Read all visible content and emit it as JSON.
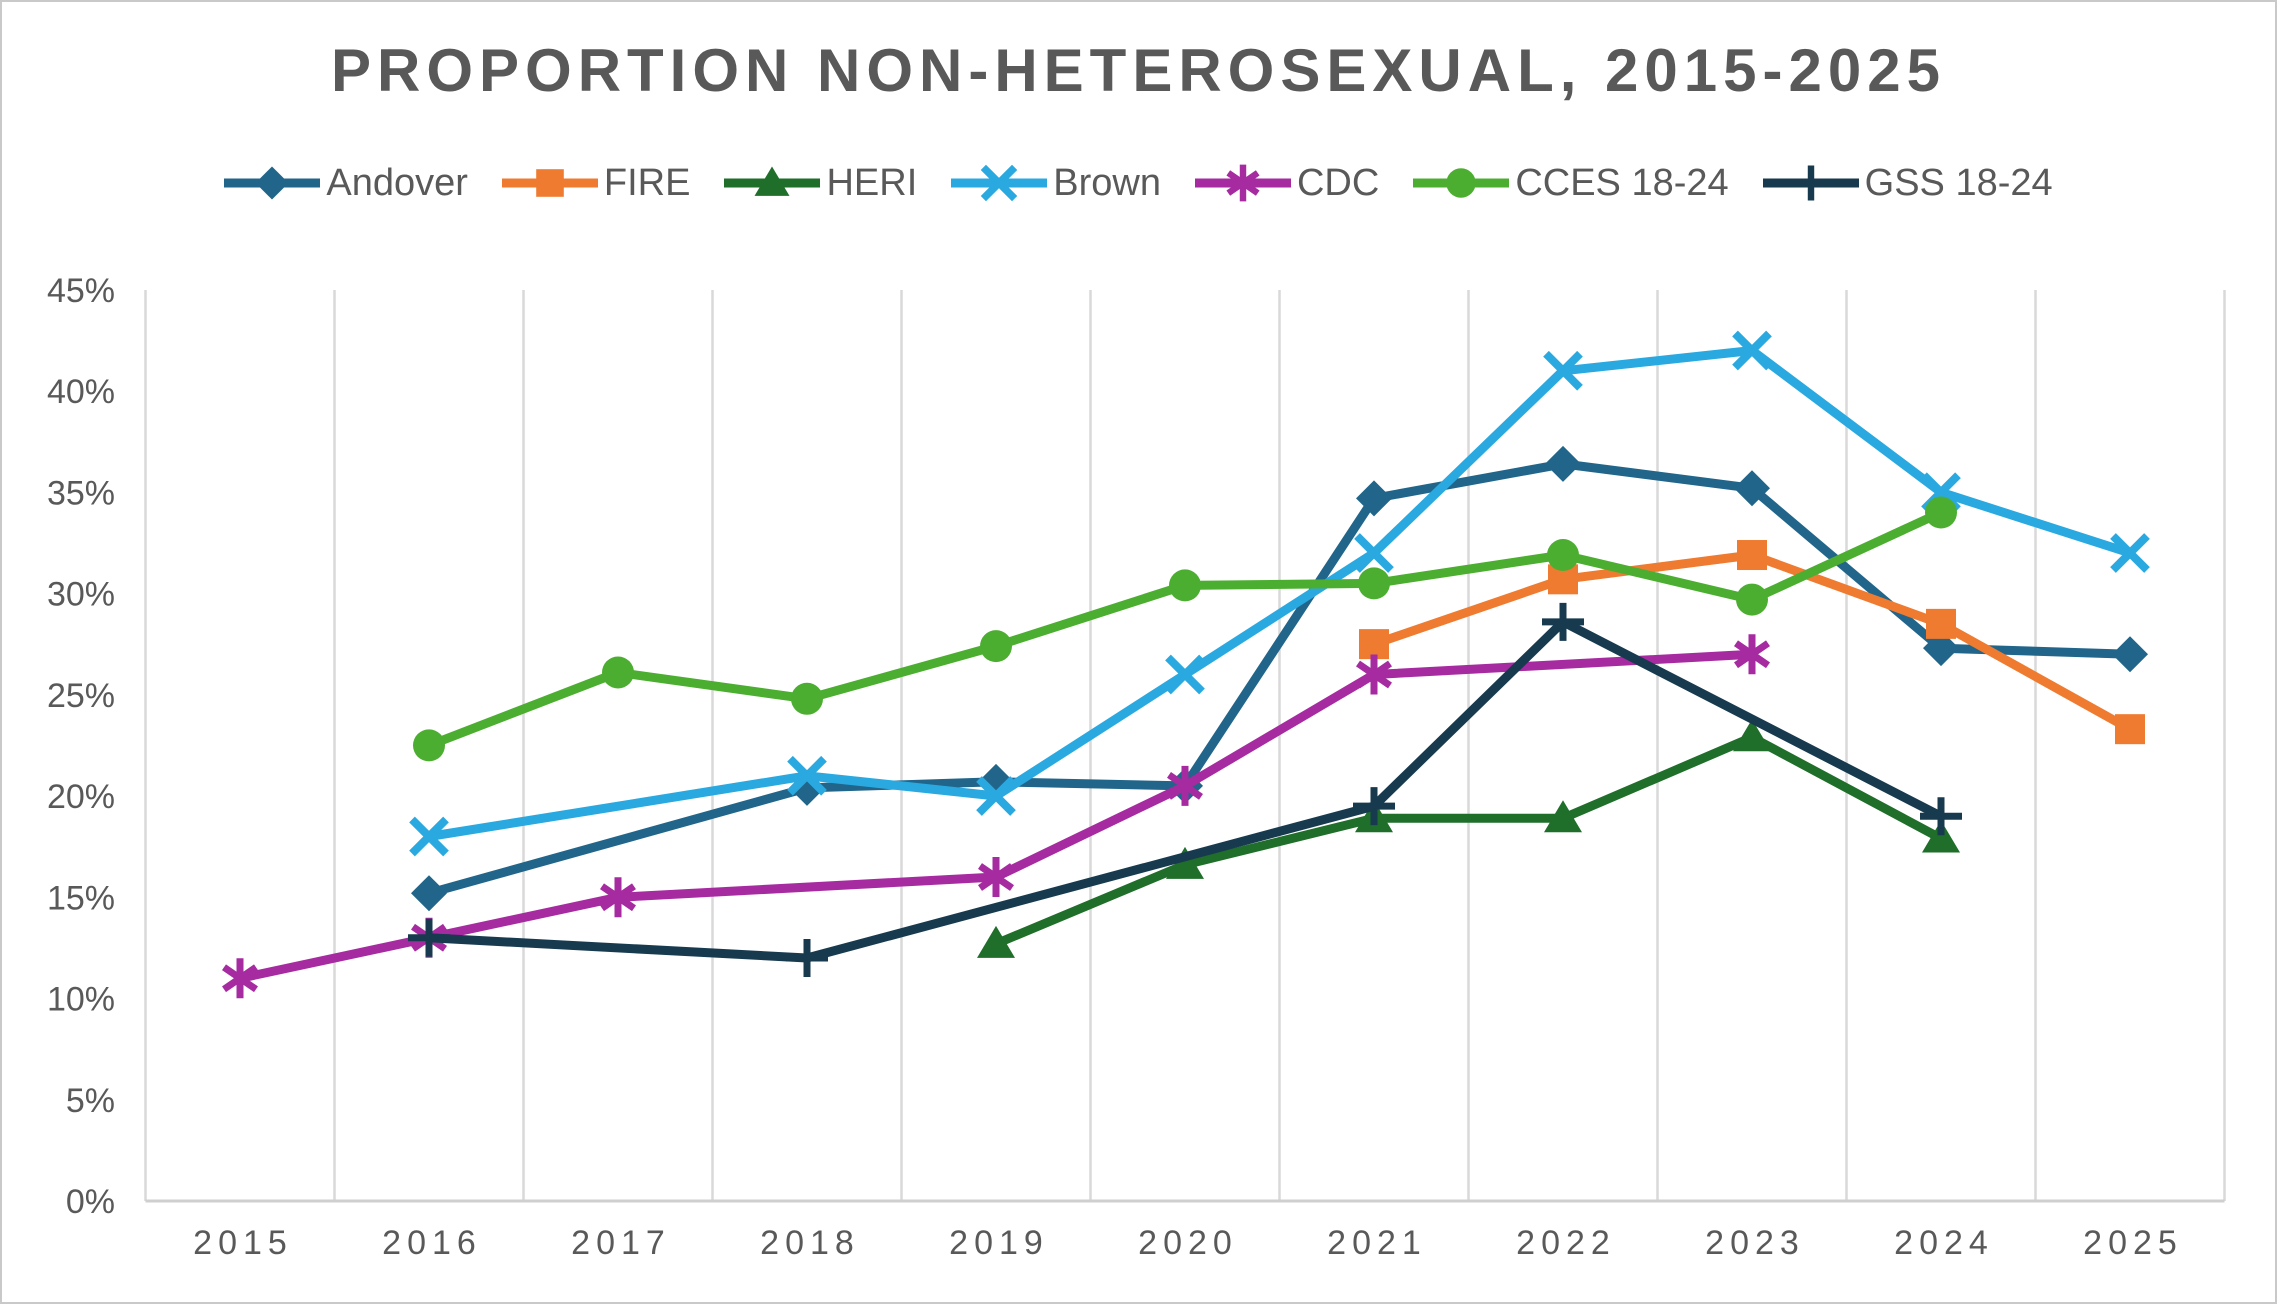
{
  "title": "PROPORTION NON-HETEROSEXUAL, 2015-2025",
  "text_color": "#595959",
  "gridline_color": "#d9d9d9",
  "axisline_color": "#cfcfcf",
  "chart_data": {
    "type": "line",
    "title": "PROPORTION NON-HETEROSEXUAL, 2015-2025",
    "xlabel": "",
    "ylabel": "",
    "ylim": [
      0,
      45
    ],
    "ytick_step": 5,
    "y_tick_labels": [
      "0%",
      "5%",
      "10%",
      "15%",
      "20%",
      "25%",
      "30%",
      "35%",
      "40%",
      "45%"
    ],
    "x_tick_labels": [
      "2015",
      "2016",
      "2017",
      "2018",
      "2019",
      "2020",
      "2021",
      "2022",
      "2023",
      "2024",
      "2025"
    ],
    "x_range": [
      2015,
      2025
    ],
    "grid": "vertical-only",
    "legend_position": "top",
    "series": [
      {
        "name": "Andover",
        "color": "#21658A",
        "marker": "diamond",
        "points": [
          [
            2016,
            15.2
          ],
          [
            2018,
            20.4
          ],
          [
            2019,
            20.7
          ],
          [
            2020,
            20.5
          ],
          [
            2021,
            34.7
          ],
          [
            2022,
            36.4
          ],
          [
            2023,
            35.2
          ],
          [
            2024,
            27.3
          ],
          [
            2025,
            27.0
          ]
        ]
      },
      {
        "name": "FIRE",
        "color": "#EE7B30",
        "marker": "square",
        "points": [
          [
            2021,
            27.5
          ],
          [
            2022,
            30.7
          ],
          [
            2023,
            31.9
          ],
          [
            2024,
            28.5
          ],
          [
            2025,
            23.3
          ]
        ]
      },
      {
        "name": "HERI",
        "color": "#1F6E2A",
        "marker": "triangle",
        "points": [
          [
            2019,
            12.7
          ],
          [
            2020,
            16.6
          ],
          [
            2021,
            18.9
          ],
          [
            2022,
            18.9
          ],
          [
            2023,
            22.9
          ],
          [
            2024,
            17.9
          ]
        ]
      },
      {
        "name": "Brown",
        "color": "#2AA9E0",
        "marker": "x",
        "points": [
          [
            2016,
            18
          ],
          [
            2018,
            21
          ],
          [
            2019,
            20
          ],
          [
            2020,
            26
          ],
          [
            2021,
            32
          ],
          [
            2022,
            41
          ],
          [
            2023,
            42
          ],
          [
            2024,
            35
          ],
          [
            2025,
            32
          ]
        ]
      },
      {
        "name": "CDC",
        "color": "#A62AA0",
        "marker": "asterisk",
        "points": [
          [
            2015,
            11
          ],
          [
            2016,
            13
          ],
          [
            2017,
            15
          ],
          [
            2019,
            16
          ],
          [
            2020,
            20.5
          ],
          [
            2021,
            26
          ],
          [
            2023,
            27
          ]
        ]
      },
      {
        "name": "CCES 18-24",
        "color": "#4CAE30",
        "marker": "circle",
        "points": [
          [
            2016,
            22.5
          ],
          [
            2017,
            26.1
          ],
          [
            2018,
            24.8
          ],
          [
            2019,
            27.4
          ],
          [
            2020,
            30.4
          ],
          [
            2021,
            30.5
          ],
          [
            2022,
            31.9
          ],
          [
            2023,
            29.7
          ],
          [
            2024,
            34
          ]
        ]
      },
      {
        "name": "GSS 18-24",
        "color": "#173A4F",
        "marker": "plus",
        "points": [
          [
            2016,
            13
          ],
          [
            2018,
            12
          ],
          [
            2021,
            19.5
          ],
          [
            2022,
            28.6
          ],
          [
            2024,
            19
          ]
        ]
      }
    ]
  }
}
